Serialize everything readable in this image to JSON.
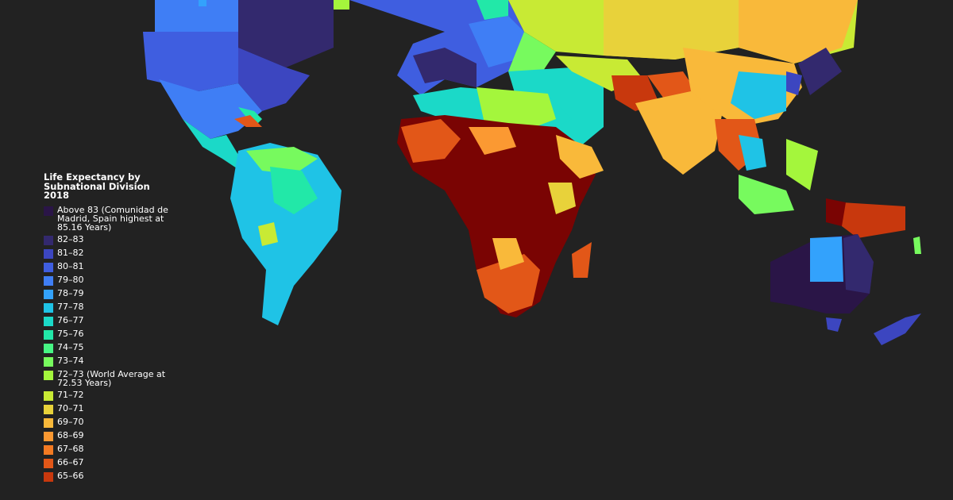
{
  "legend": {
    "title": "Life Expectancy by\nSubnational Division\n2018",
    "items": [
      {
        "label": "Above 83 (Comunidad de\nMadrid, Spain highest at\n85.16 Years)",
        "color": "#2a1547"
      },
      {
        "label": "82–83",
        "color": "#33296e"
      },
      {
        "label": "81–82",
        "color": "#3c46c0"
      },
      {
        "label": "80–81",
        "color": "#3f5ee0"
      },
      {
        "label": "79–80",
        "color": "#3f7ef5"
      },
      {
        "label": "78–79",
        "color": "#33a2fc"
      },
      {
        "label": "77–78",
        "color": "#1fc3e6"
      },
      {
        "label": "76–77",
        "color": "#1bd9c8"
      },
      {
        "label": "75–76",
        "color": "#22e8a8"
      },
      {
        "label": "74–75",
        "color": "#47f584"
      },
      {
        "label": "73–74",
        "color": "#77fa5e"
      },
      {
        "label": "72–73 (World Average at\n72.53 Years)",
        "color": "#a4f63c"
      },
      {
        "label": "71–72",
        "color": "#c8ea34"
      },
      {
        "label": "70–71",
        "color": "#e8d23a"
      },
      {
        "label": "69–70",
        "color": "#f9b93a"
      },
      {
        "label": "68–69",
        "color": "#fb9932"
      },
      {
        "label": "67–68",
        "color": "#f47a22"
      },
      {
        "label": "66–67",
        "color": "#e25718"
      },
      {
        "label": "65–66",
        "color": "#c8380d"
      }
    ]
  },
  "colors": {
    "background": "#222222",
    "lowest": "#7a0403"
  }
}
